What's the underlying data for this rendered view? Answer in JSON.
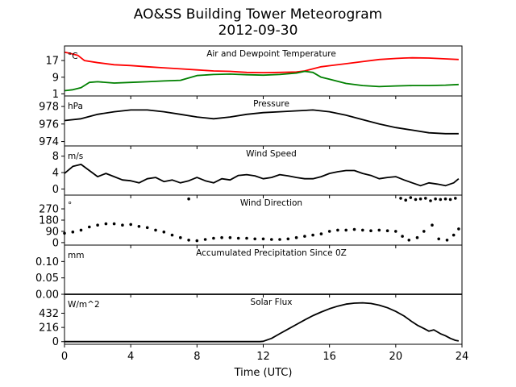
{
  "title": "AO&SS Building Tower Meteorogram",
  "subtitle": "2012-09-30",
  "chart_data": {
    "type": "line",
    "x_axis": {
      "label": "Time (UTC)",
      "range": [
        0,
        24
      ],
      "ticks": [
        0,
        4,
        8,
        12,
        16,
        20,
        24
      ],
      "tick_labels": [
        "0",
        "4",
        "8",
        "12",
        "16",
        "20",
        "24"
      ]
    },
    "panels": [
      {
        "key": "temp",
        "title": "Air and Dewpoint Temperature",
        "unit": "°C",
        "ylim": [
          0,
          24
        ],
        "yticks": [
          1,
          9,
          17
        ],
        "tick_labels": [
          "1",
          "9",
          "17"
        ],
        "series": [
          {
            "color": "#ff0000",
            "style": "line",
            "x": [
              0,
              0.3,
              0.8,
              1.2,
              2,
              3,
              4,
              5,
              6,
              7,
              8,
              9,
              10,
              11,
              12,
              13,
              14,
              14.5,
              15,
              15.5,
              16,
              17,
              18,
              19,
              20,
              20.5,
              21,
              22,
              23,
              23.8
            ],
            "y": [
              21,
              20.5,
              19.5,
              17,
              16,
              15,
              14.6,
              14,
              13.5,
              13,
              12.5,
              12,
              11.8,
              11.3,
              11.2,
              11.3,
              11.5,
              12,
              13,
              14,
              14.5,
              15.5,
              16.5,
              17.5,
              18,
              18.2,
              18.3,
              18.2,
              17.8,
              17.5
            ]
          },
          {
            "color": "#008000",
            "style": "line",
            "x": [
              0,
              0.5,
              1,
              1.5,
              2,
              3,
              4,
              5,
              6,
              7,
              8,
              9,
              10,
              11,
              12,
              13,
              14,
              14.5,
              15,
              15.5,
              16,
              17,
              18,
              19,
              20,
              21,
              22,
              23,
              23.8
            ],
            "y": [
              2.5,
              3,
              4,
              6.5,
              6.8,
              6.2,
              6.5,
              6.8,
              7.2,
              7.5,
              9.8,
              10.3,
              10.5,
              10.2,
              10,
              10.3,
              11,
              11.8,
              11.3,
              9,
              8,
              6,
              5,
              4.5,
              4.8,
              5,
              5,
              5.2,
              5.5
            ]
          }
        ]
      },
      {
        "key": "pressure",
        "title": "Pressure",
        "unit": "hPa",
        "ylim": [
          973.5,
          979.2
        ],
        "yticks": [
          974,
          976,
          978
        ],
        "tick_labels": [
          "974",
          "976",
          "978"
        ],
        "series": [
          {
            "color": "#000000",
            "style": "line",
            "x": [
              0,
              1,
              2,
              3,
              4,
              5,
              6,
              7,
              8,
              9,
              10,
              11,
              12,
              13,
              14,
              15,
              16,
              17,
              18,
              19,
              20,
              21,
              22,
              23,
              23.8
            ],
            "y": [
              976.4,
              976.6,
              977.1,
              977.4,
              977.6,
              977.6,
              977.4,
              977.1,
              976.8,
              976.6,
              976.8,
              977.1,
              977.3,
              977.4,
              977.5,
              977.6,
              977.4,
              977,
              976.5,
              976,
              975.6,
              975.3,
              975,
              974.9,
              974.9
            ]
          }
        ]
      },
      {
        "key": "wind_speed",
        "title": "Wind Speed",
        "unit": "m/s",
        "ylim": [
          -1.5,
          10.5
        ],
        "yticks": [
          0,
          4,
          8
        ],
        "tick_labels": [
          "0",
          "4",
          "8"
        ],
        "series": [
          {
            "color": "#000000",
            "style": "line",
            "x": [
              0,
              0.5,
              1,
              1.5,
              2,
              2.5,
              3,
              3.5,
              4,
              4.5,
              5,
              5.5,
              6,
              6.5,
              7,
              7.5,
              8,
              8.5,
              9,
              9.5,
              10,
              10.5,
              11,
              11.5,
              12,
              12.5,
              13,
              13.5,
              14,
              14.5,
              15,
              15.5,
              16,
              16.5,
              17,
              17.5,
              18,
              18.5,
              19,
              19.5,
              20,
              20.5,
              21,
              21.5,
              22,
              22.5,
              23,
              23.5,
              23.8
            ],
            "y": [
              3.8,
              5.5,
              6,
              4.5,
              3,
              3.8,
              3,
              2.2,
              2,
              1.5,
              2.5,
              2.8,
              1.8,
              2.2,
              1.5,
              2,
              2.8,
              2,
              1.5,
              2.5,
              2.2,
              3.3,
              3.5,
              3.2,
              2.5,
              2.8,
              3.5,
              3.2,
              2.8,
              2.5,
              2.5,
              3,
              3.8,
              4.2,
              4.5,
              4.5,
              3.8,
              3.3,
              2.5,
              2.8,
              3,
              2.2,
              1.5,
              0.8,
              1.5,
              1.2,
              0.8,
              1.5,
              2.5
            ]
          }
        ]
      },
      {
        "key": "wind_direction",
        "title": "Wind Direction",
        "unit": "°",
        "ylim": [
          -20,
          380
        ],
        "yticks": [
          0,
          90,
          180,
          270
        ],
        "tick_labels": [
          "0",
          "90",
          "180",
          "270"
        ],
        "series": [
          {
            "color": "#000000",
            "style": "dots",
            "x": [
              0,
              0.5,
              1,
              1.5,
              2,
              2.5,
              3,
              3.5,
              4,
              4.5,
              5,
              5.5,
              6,
              6.5,
              7,
              7.5,
              8,
              8.5,
              9,
              9.5,
              10,
              10.5,
              11,
              11.5,
              12,
              12.5,
              13,
              13.5,
              14,
              14.5,
              15,
              15.5,
              16,
              16.5,
              17,
              17.5,
              18,
              18.5,
              19,
              19.5,
              20,
              7.5,
              20.3,
              20.6,
              20.9,
              21.2,
              21.5,
              21.8,
              22.1,
              22.4,
              22.7,
              23,
              23.3,
              23.6,
              20.4,
              20.8,
              21.3,
              21.7,
              22.2,
              22.6,
              23.1,
              23.5,
              23.8
            ],
            "y": [
              75,
              85,
              100,
              125,
              140,
              150,
              150,
              140,
              145,
              130,
              120,
              100,
              85,
              60,
              40,
              20,
              15,
              25,
              35,
              40,
              40,
              35,
              35,
              30,
              30,
              25,
              25,
              30,
              40,
              50,
              60,
              70,
              90,
              100,
              100,
              105,
              100,
              95,
              100,
              95,
              90,
              350,
              355,
              340,
              360,
              345,
              350,
              355,
              335,
              350,
              345,
              350,
              345,
              355,
              50,
              20,
              40,
              90,
              140,
              30,
              20,
              60,
              110
            ]
          }
        ]
      },
      {
        "key": "precipitation",
        "title": "Accumulated Precipitation Since 0Z",
        "unit": "mm",
        "ylim": [
          0,
          0.15
        ],
        "yticks": [
          0.0,
          0.05,
          0.1
        ],
        "tick_labels": [
          "0.00",
          "0.05",
          "0.10"
        ],
        "series": [
          {
            "color": "#000000",
            "style": "line",
            "x": [
              0,
              24
            ],
            "y": [
              0,
              0
            ]
          }
        ]
      },
      {
        "key": "solar",
        "title": "Solar Flux",
        "unit": "W/m^2",
        "ylim": [
          -40,
          720
        ],
        "yticks": [
          0,
          216,
          432
        ],
        "tick_labels": [
          "0",
          "216",
          "432"
        ],
        "series": [
          {
            "color": "#000000",
            "style": "line",
            "x": [
              0,
              11.8,
              12,
              12.5,
              13,
              13.5,
              14,
              14.5,
              15,
              15.5,
              16,
              16.5,
              17,
              17.5,
              18,
              18.5,
              19,
              19.5,
              20,
              20.5,
              21,
              21.3,
              21.7,
              22,
              22.3,
              22.7,
              23,
              23.3,
              23.6,
              23.8
            ],
            "y": [
              0,
              0,
              5,
              50,
              120,
              190,
              260,
              330,
              395,
              450,
              500,
              540,
              570,
              585,
              590,
              580,
              555,
              515,
              460,
              390,
              300,
              250,
              200,
              160,
              180,
              120,
              90,
              50,
              20,
              10
            ]
          }
        ]
      }
    ]
  }
}
